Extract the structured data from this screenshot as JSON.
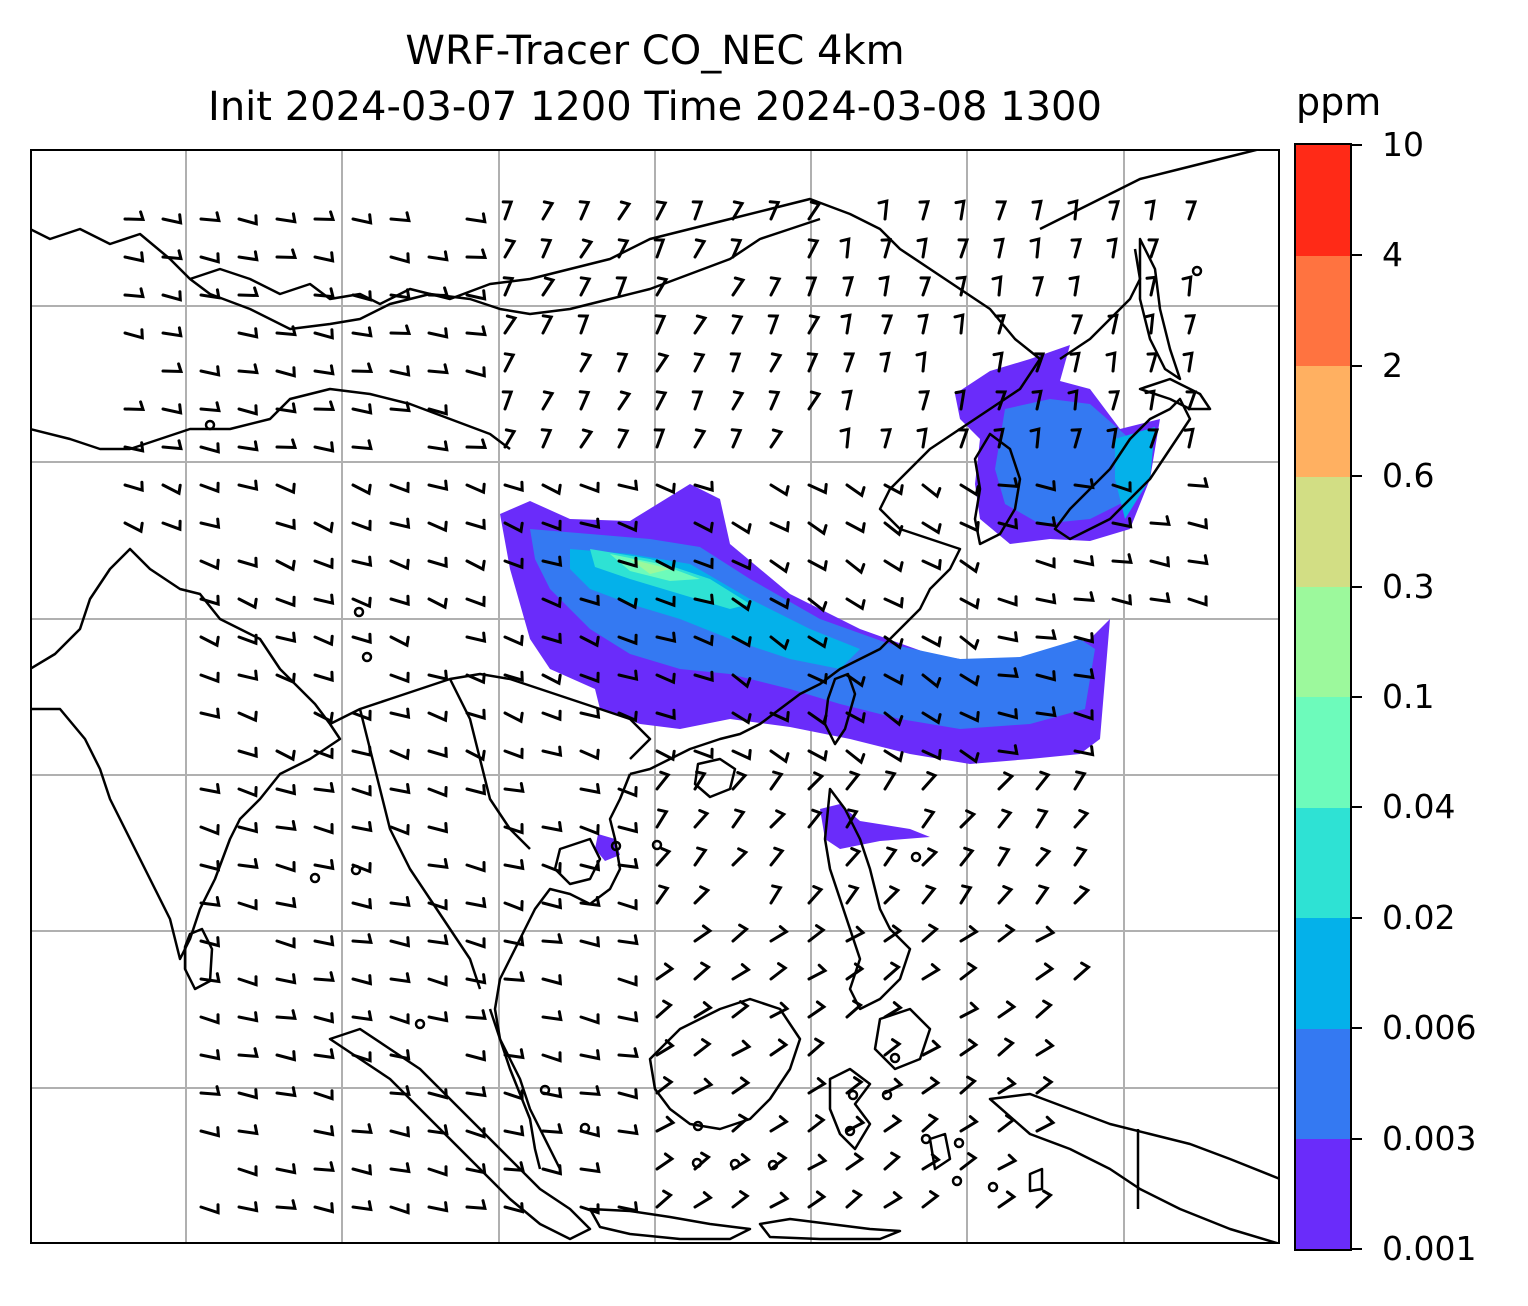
{
  "title": {
    "line1": "WRF-Tracer CO_NEC 4km",
    "line2": "Init 2024-03-07 1200 Time 2024-03-08 1300"
  },
  "colorbar": {
    "unit": "ppm",
    "levels": [
      "0.001",
      "0.003",
      "0.006",
      "0.02",
      "0.04",
      "0.1",
      "0.3",
      "0.6",
      "2",
      "4",
      "10"
    ],
    "colors": [
      "#6a2cfa",
      "#3479f2",
      "#04b1ea",
      "#2ee2d4",
      "#6dfbbb",
      "#9cf99c",
      "#d2de84",
      "#ffb061",
      "#ff7340",
      "#ff2a17"
    ]
  },
  "map": {
    "gridlines": "on",
    "coastline_color": "#000000",
    "grid_color": "#b0b0b0",
    "features": [
      "coastlines",
      "country-borders",
      "wind-barbs",
      "co-tracer-plume"
    ]
  }
}
